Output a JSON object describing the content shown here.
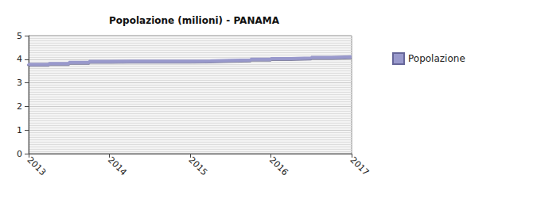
{
  "chart_data": {
    "type": "line",
    "title": "Popolazione (milioni) - PANAMA",
    "x": [
      2013,
      2013.25,
      2013.5,
      2013.75,
      2014,
      2014.25,
      2014.5,
      2014.75,
      2015,
      2015.25,
      2015.5,
      2015.75,
      2016,
      2016.25,
      2016.5,
      2016.75,
      2017
    ],
    "series": [
      {
        "name": "Popolazione",
        "color": "#9999cc",
        "line_style": "step",
        "values": [
          3.75,
          3.78,
          3.82,
          3.87,
          3.91,
          3.92,
          3.92,
          3.92,
          3.92,
          3.93,
          3.95,
          3.97,
          4.0,
          4.03,
          4.05,
          4.08,
          4.1
        ]
      }
    ],
    "xlim": [
      2013,
      2017
    ],
    "xticks": [
      2013,
      2014,
      2015,
      2016,
      2017
    ],
    "ylim": [
      0,
      5
    ],
    "yticks": [
      0,
      1,
      2,
      3,
      4,
      5
    ],
    "grid": true,
    "legend": "right"
  }
}
